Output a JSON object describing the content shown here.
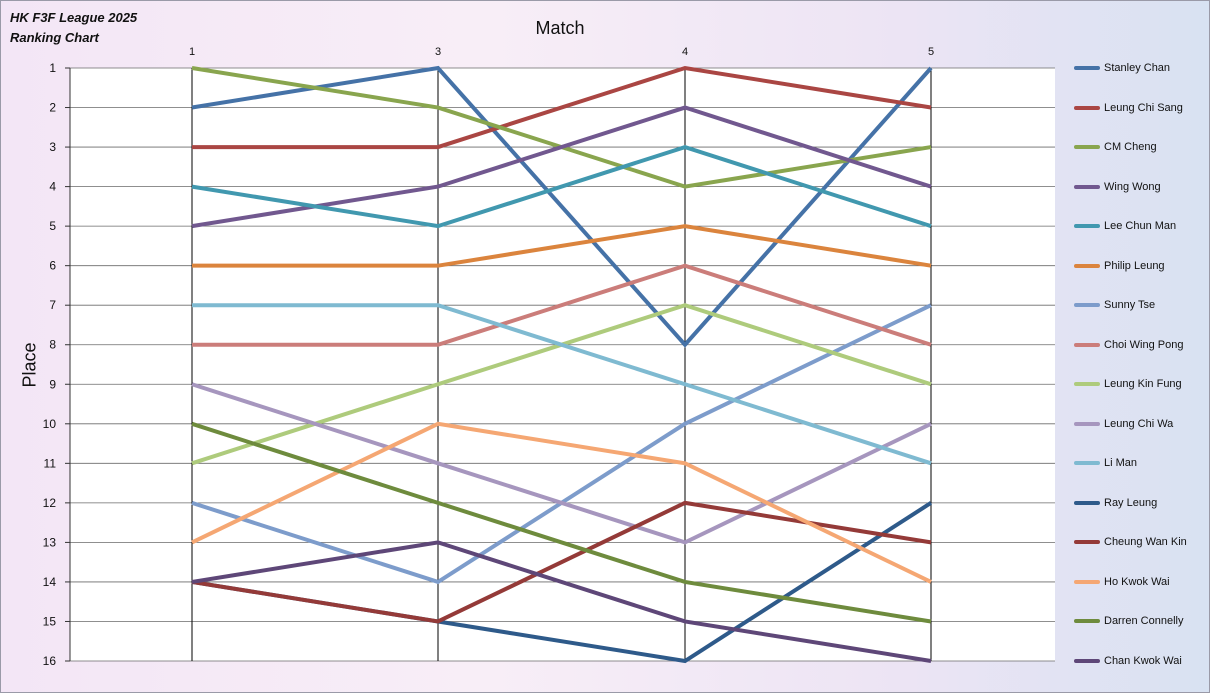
{
  "header": {
    "title_line1": "HK F3F League 2025",
    "title_line2": "Ranking Chart"
  },
  "chart_data": {
    "type": "line",
    "title": "HK F3F League 2025 Ranking Chart",
    "xlabel": "Match",
    "ylabel": "Place",
    "x": [
      "1",
      "3",
      "4",
      "5"
    ],
    "ylim": [
      1,
      16
    ],
    "y_inverted": true,
    "y_ticks": [
      "1",
      "2",
      "3",
      "4",
      "5",
      "6",
      "7",
      "8",
      "9",
      "10",
      "11",
      "12",
      "13",
      "14",
      "15",
      "16"
    ],
    "legend_position": "right",
    "grid": true,
    "series": [
      {
        "name": "Stanley Chan",
        "color": "#4572a7",
        "values": [
          2,
          1,
          8,
          1
        ]
      },
      {
        "name": "Leung Chi Sang",
        "color": "#aa4643",
        "values": [
          3,
          3,
          1,
          2
        ]
      },
      {
        "name": "CM Cheng",
        "color": "#89a54e",
        "values": [
          1,
          2,
          4,
          3
        ]
      },
      {
        "name": "Wing Wong",
        "color": "#71588f",
        "values": [
          5,
          4,
          2,
          4
        ]
      },
      {
        "name": "Lee Chun Man",
        "color": "#4198af",
        "values": [
          4,
          5,
          3,
          5
        ]
      },
      {
        "name": "Philip Leung",
        "color": "#db843d",
        "values": [
          6,
          6,
          5,
          6
        ]
      },
      {
        "name": "Sunny Tse",
        "color": "#7d9ccb",
        "values": [
          12,
          14,
          10,
          7
        ]
      },
      {
        "name": "Choi Wing Pong",
        "color": "#cb7d7a",
        "values": [
          8,
          8,
          6,
          8
        ]
      },
      {
        "name": "Leung Kin Fung",
        "color": "#aecb7c",
        "values": [
          11,
          9,
          7,
          9
        ]
      },
      {
        "name": "Leung Chi Wa",
        "color": "#a696be",
        "values": [
          9,
          11,
          13,
          10
        ]
      },
      {
        "name": "Li Man",
        "color": "#7fbad1",
        "values": [
          7,
          7,
          9,
          11
        ]
      },
      {
        "name": "Ray Leung",
        "color": "#2e5a8a",
        "values": [
          14,
          15,
          16,
          12
        ]
      },
      {
        "name": "Cheung Wan Kin",
        "color": "#943a38",
        "values": [
          14,
          15,
          12,
          13
        ]
      },
      {
        "name": "Ho Kwok Wai",
        "color": "#f5a773",
        "values": [
          13,
          10,
          11,
          14
        ]
      },
      {
        "name": "Darren Connelly",
        "color": "#6e8b3d",
        "values": [
          10,
          12,
          14,
          15
        ]
      },
      {
        "name": "Chan Kwok Wai",
        "color": "#5e4778",
        "values": [
          14,
          13,
          15,
          16
        ]
      }
    ]
  }
}
